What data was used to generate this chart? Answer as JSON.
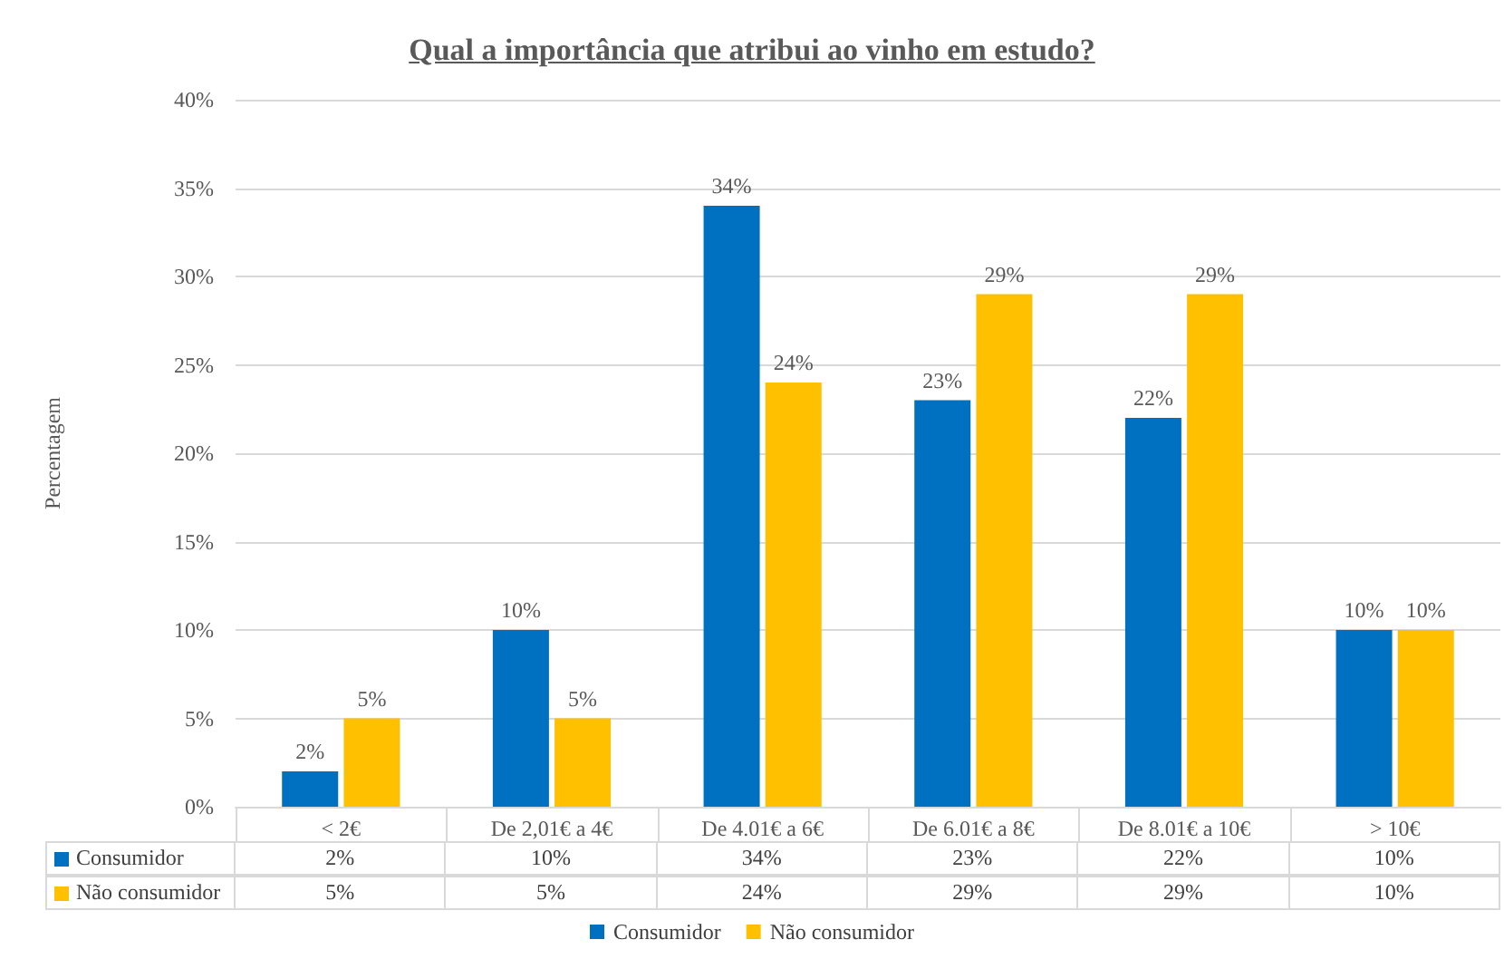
{
  "chart_data": {
    "type": "bar",
    "title": "Qual a importância que atribui ao vinho em estudo?",
    "ylabel": "Percentagem",
    "categories": [
      "< 2€",
      "De 2,01€ a 4€",
      "De 4.01€ a 6€",
      "De 6.01€ a 8€",
      "De 8.01€ a 10€",
      "> 10€"
    ],
    "series": [
      {
        "name": "Consumidor",
        "color": "#0070c0",
        "values": [
          2,
          10,
          34,
          23,
          22,
          10
        ],
        "value_labels": [
          "2%",
          "10%",
          "34%",
          "23%",
          "22%",
          "10%"
        ]
      },
      {
        "name": "Não consumidor",
        "color": "#ffc000",
        "values": [
          5,
          5,
          24,
          29,
          29,
          10
        ],
        "value_labels": [
          "5%",
          "5%",
          "24%",
          "29%",
          "29%",
          "10%"
        ]
      }
    ],
    "ylim": [
      0,
      40
    ],
    "yticks": [
      {
        "value": 0,
        "label": "0%"
      },
      {
        "value": 5,
        "label": "5%"
      },
      {
        "value": 10,
        "label": "10%"
      },
      {
        "value": 15,
        "label": "15%"
      },
      {
        "value": 20,
        "label": "20%"
      },
      {
        "value": 25,
        "label": "25%"
      },
      {
        "value": 30,
        "label": "30%"
      },
      {
        "value": 35,
        "label": "35%"
      },
      {
        "value": 40,
        "label": "40%"
      }
    ],
    "grid": "y",
    "legend": "bottom"
  }
}
